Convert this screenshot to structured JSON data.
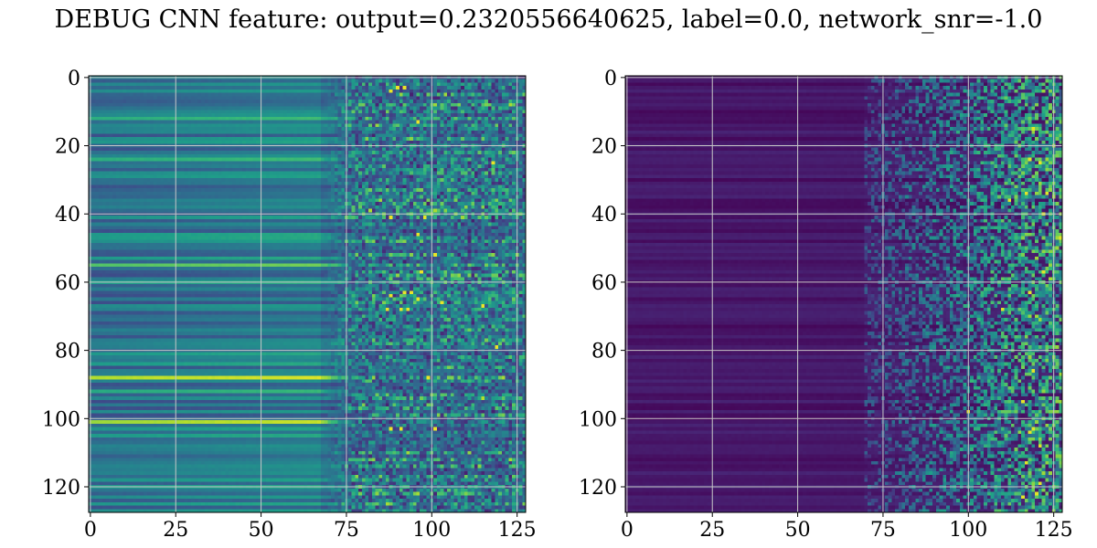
{
  "title": "DEBUG CNN feature: output=0.2320556640625, label=0.0, network_snr=-1.0",
  "chart_data": [
    {
      "type": "heatmap",
      "title": "",
      "xlabel": "",
      "ylabel": "",
      "colormap": "viridis",
      "xlim": [
        -0.5,
        127.5
      ],
      "ylim": [
        127.5,
        -0.5
      ],
      "grid": true,
      "shape": [
        128,
        128
      ],
      "xticks": [
        0,
        25,
        50,
        75,
        100,
        125
      ],
      "yticks": [
        0,
        20,
        40,
        60,
        80,
        100,
        120
      ],
      "xtick_labels": [
        "0",
        "25",
        "50",
        "75",
        "100",
        "125"
      ],
      "ytick_labels": [
        "0",
        "20",
        "40",
        "60",
        "80",
        "100",
        "120"
      ],
      "values_description": "smooth horizontal bands (teal-blue, ~0.3-0.5) for columns 0-70, noisy high-variance region for columns 75-127 with bright yellow spots near rows 3, 25, 41, 63-68, 88, 103"
    },
    {
      "type": "heatmap",
      "title": "",
      "xlabel": "",
      "ylabel": "",
      "colormap": "viridis",
      "xlim": [
        -0.5,
        127.5
      ],
      "ylim": [
        127.5,
        -0.5
      ],
      "grid": true,
      "shape": [
        128,
        128
      ],
      "xticks": [
        0,
        25,
        50,
        75,
        100,
        125
      ],
      "yticks": [
        0,
        20,
        40,
        60,
        80,
        100,
        120
      ],
      "xtick_labels": [
        "0",
        "25",
        "50",
        "75",
        "100",
        "125"
      ],
      "ytick_labels": [
        "0",
        "20",
        "40",
        "60",
        "80",
        "100",
        "120"
      ],
      "values_description": "mostly dark purple (near 0) for columns 0-75, sparse noisy activations increasing to the right with bright yellow spots near columns 115-122"
    }
  ]
}
